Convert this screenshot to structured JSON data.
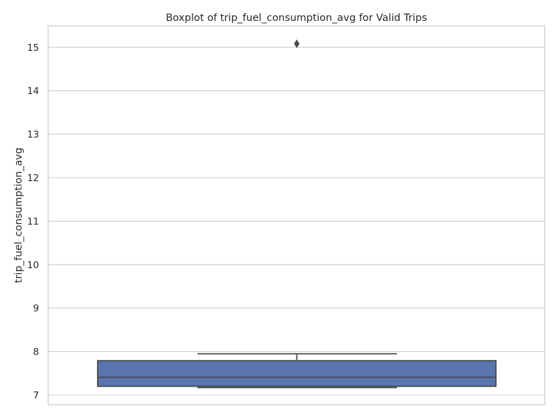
{
  "chart_data": {
    "type": "box",
    "title": "Boxplot of trip_fuel_consumption_avg for Valid Trips",
    "xlabel": "",
    "ylabel": "trip_fuel_consumption_avg",
    "ylim": [
      6.78,
      15.5
    ],
    "yticks": [
      7,
      8,
      9,
      10,
      11,
      12,
      13,
      14,
      15
    ],
    "grid": true,
    "box": {
      "whisker_low": 7.17,
      "q1": 7.2,
      "median": 7.41,
      "q3": 7.79,
      "whisker_high": 7.95,
      "outliers": [
        15.08
      ]
    },
    "colors": {
      "box_fill": "#5875ad",
      "line": "#4a4a4a",
      "grid": "#cccccc",
      "axes_edge": "#cccccc"
    }
  }
}
